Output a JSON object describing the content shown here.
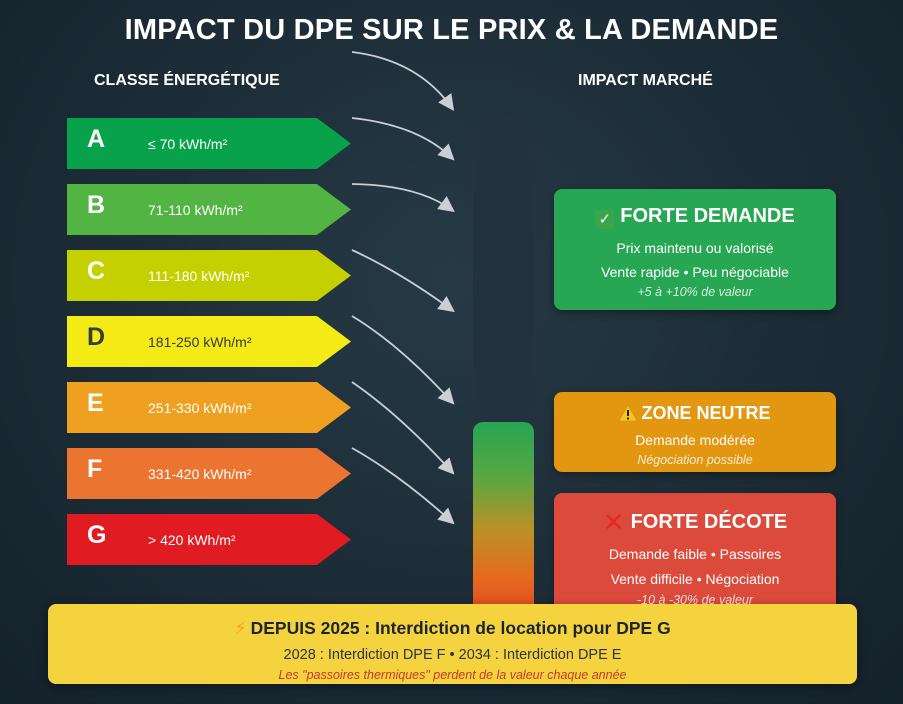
{
  "title": "IMPACT DU DPE SUR LE PRIX & LA DEMANDE",
  "left_heading": "CLASSE ÉNERGÉTIQUE",
  "right_heading": "IMPACT MARCHÉ",
  "classes": [
    {
      "letter": "A",
      "range": "≤ 70 kWh/m²",
      "color": "#08a24a",
      "text_color": "#ffffff"
    },
    {
      "letter": "B",
      "range": "71-110 kWh/m²",
      "color": "#52b442",
      "text_color": "#ffffff"
    },
    {
      "letter": "C",
      "range": "111-180 kWh/m²",
      "color": "#c5d000",
      "text_color": "#ffffff"
    },
    {
      "letter": "D",
      "range": "181-250 kWh/m²",
      "color": "#f4ea16",
      "text_color": "#3a3a3a"
    },
    {
      "letter": "E",
      "range": "251-330 kWh/m²",
      "color": "#f0a021",
      "text_color": "#ffffff"
    },
    {
      "letter": "F",
      "range": "331-420 kWh/m²",
      "color": "#ec7431",
      "text_color": "#ffffff"
    },
    {
      "letter": "G",
      "range": "> 420 kWh/m²",
      "color": "#e11b22",
      "text_color": "#ffffff"
    }
  ],
  "impacts": {
    "forte_demande": {
      "icon": "check-mark-icon",
      "title": "FORTE DEMANDE",
      "line1": "Prix maintenu ou valorisé",
      "line2": "Vente rapide • Peu négociable",
      "note": "+5 à +10% de valeur",
      "color": "#27a653"
    },
    "zone_neutre": {
      "icon": "warning-icon",
      "title": "ZONE NEUTRE",
      "line1": "Demande modérée",
      "note": "Négociation possible",
      "color": "#e3960f"
    },
    "forte_decote": {
      "icon": "cross-mark-icon",
      "title": "FORTE DÉCOTE",
      "line1": "Demande faible • Passoires",
      "line2": "Vente difficile • Négociation",
      "note": "-10 à -30% de valeur",
      "color": "#dc4a3c"
    }
  },
  "banner": {
    "icon": "lightning-icon",
    "title": "DEPUIS 2025 : Interdiction de location pour DPE G",
    "line": "2028 : Interdiction DPE F • 2034 : Interdiction DPE E",
    "note": "Les \"passoires thermiques\" perdent de la valeur chaque année",
    "color": "#f5d33f"
  }
}
